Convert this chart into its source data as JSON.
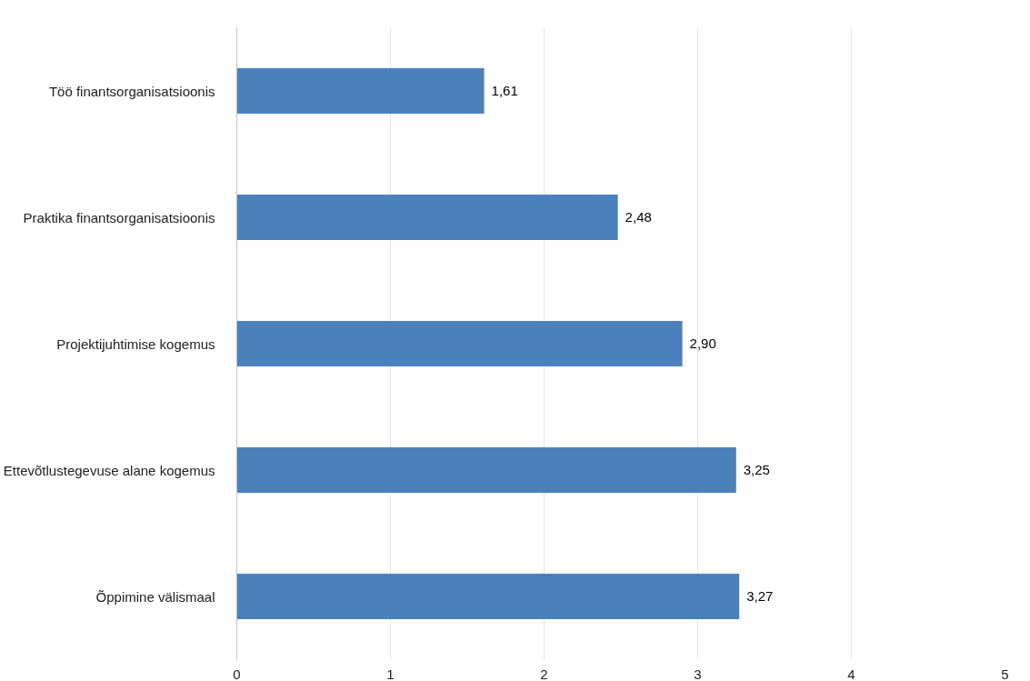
{
  "chart_data": {
    "type": "bar",
    "orientation": "horizontal",
    "categories": [
      "Töö finantsorganisatsioonis",
      "Praktika finantsorganisatsioonis",
      "Projektijuhtimise kogemus",
      "Ettevõtlustegevuse alane kogemus",
      "Õppimine välismaal"
    ],
    "values": [
      1.61,
      2.48,
      2.9,
      3.25,
      3.27
    ],
    "value_labels": [
      "1,61",
      "2,48",
      "2,90",
      "3,25",
      "3,27"
    ],
    "color": "#4a81bd",
    "xlim": [
      0,
      5
    ],
    "xticks": [
      0,
      1,
      2,
      3,
      4,
      5
    ],
    "grid": "x"
  }
}
